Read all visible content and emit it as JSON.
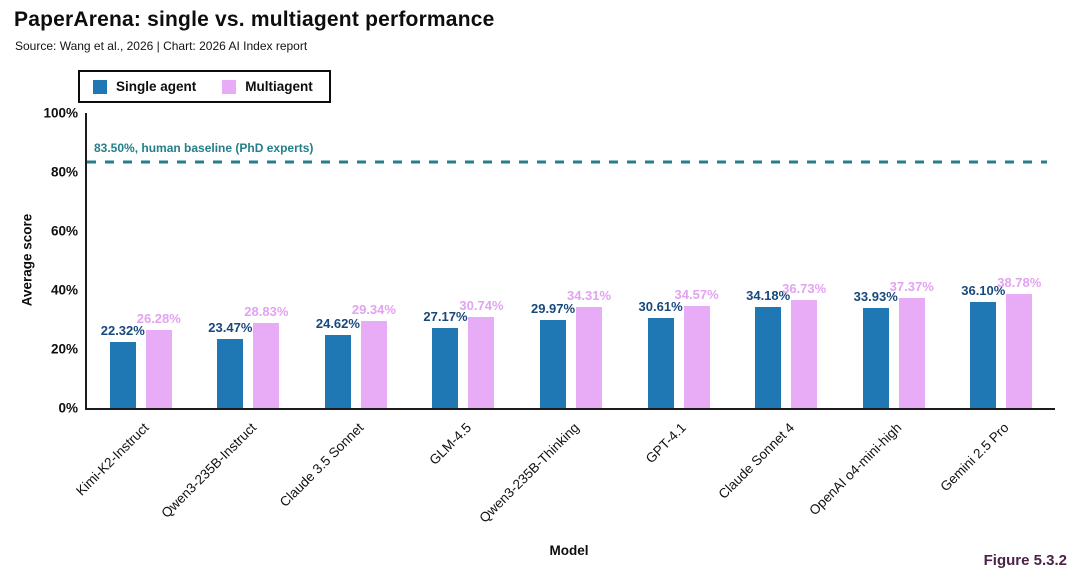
{
  "header": {
    "title": "PaperArena: single vs. multiagent performance",
    "subtitle": "Source: Wang et al., 2026 | Chart: 2026 AI Index report"
  },
  "legend": {
    "items": [
      {
        "label": "Single agent",
        "color": "#1f77b4"
      },
      {
        "label": "Multiagent",
        "color": "#e7acf5"
      }
    ]
  },
  "figure_label": "Figure 5.3.2",
  "colors": {
    "single_bar": "#1f77b4",
    "single_label": "#17497c",
    "multi_bar": "#e7acf5",
    "multi_label": "#e2a3f0",
    "baseline": "#227f8b",
    "axis_ink": "#1c1c1c",
    "figure_label": "#4b2347"
  },
  "chart_data": {
    "type": "bar",
    "title": "PaperArena: single vs. multiagent performance",
    "xlabel": "Model",
    "ylabel": "Average score",
    "ylim": [
      0,
      100
    ],
    "yticks": [
      0,
      20,
      40,
      60,
      80,
      100
    ],
    "ytick_suffix": "%",
    "value_suffix": "%",
    "grid": false,
    "legend_position": "top-left",
    "categories": [
      "Kimi-K2-Instruct",
      "Qwen3-235B-Instruct",
      "Claude 3.5 Sonnet",
      "GLM-4.5",
      "Qwen3-235B-Thinking",
      "GPT-4.1",
      "Claude Sonnet 4",
      "OpenAI o4-mini-high",
      "Gemini 2.5 Pro"
    ],
    "series": [
      {
        "name": "Single agent",
        "color": "#1f77b4",
        "label_color": "#17497c",
        "values": [
          22.32,
          23.47,
          24.62,
          27.17,
          29.97,
          30.61,
          34.18,
          33.93,
          36.1
        ]
      },
      {
        "name": "Multiagent",
        "color": "#e7acf5",
        "label_color": "#e2a3f0",
        "values": [
          26.28,
          28.83,
          29.34,
          30.74,
          34.31,
          34.57,
          36.73,
          37.37,
          38.78
        ]
      }
    ],
    "baseline": {
      "value": 83.5,
      "label": "83.50%, human baseline (PhD experts)",
      "color": "#227f8b"
    }
  }
}
